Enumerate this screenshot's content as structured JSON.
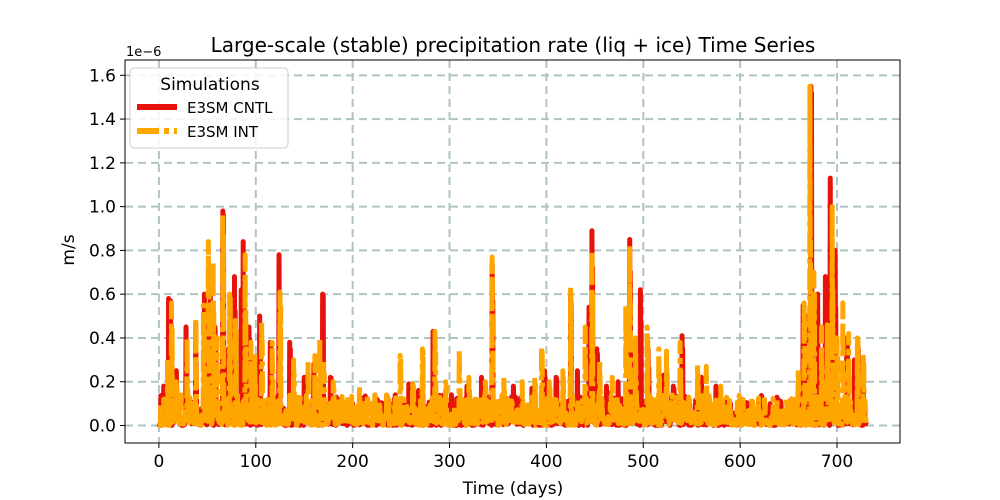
{
  "chart_data": {
    "type": "line",
    "title": "Large-scale (stable) precipitation rate (liq + ice) Time Series",
    "xlabel": "Time (days)",
    "ylabel": "m/s",
    "y_offset_text": "1e−6",
    "xlim": [
      -35,
      765
    ],
    "ylim": [
      -0.08,
      1.67
    ],
    "xticks": [
      0,
      100,
      200,
      300,
      400,
      500,
      600,
      700
    ],
    "xtick_labels": [
      "0",
      "100",
      "200",
      "300",
      "400",
      "500",
      "600",
      "700"
    ],
    "yticks": [
      0.0,
      0.2,
      0.4,
      0.6,
      0.8,
      1.0,
      1.2,
      1.4,
      1.6
    ],
    "ytick_labels": [
      "0.0",
      "0.2",
      "0.4",
      "0.6",
      "0.8",
      "1.0",
      "1.2",
      "1.4",
      "1.6"
    ],
    "grid": true,
    "legend": {
      "title": "Simulations",
      "placement": "top-left"
    },
    "series": [
      {
        "name": "E3SM CNTL",
        "color": "#e8120c",
        "style": "solid",
        "peaks": [
          [
            5,
            0.18
          ],
          [
            10,
            0.58
          ],
          [
            12,
            0.57
          ],
          [
            18,
            0.25
          ],
          [
            28,
            0.45
          ],
          [
            38,
            0.47
          ],
          [
            47,
            0.6
          ],
          [
            53,
            0.65
          ],
          [
            58,
            0.45
          ],
          [
            66,
            0.98
          ],
          [
            72,
            0.35
          ],
          [
            78,
            0.68
          ],
          [
            85,
            0.62
          ],
          [
            87,
            0.84
          ],
          [
            93,
            0.45
          ],
          [
            98,
            0.3
          ],
          [
            104,
            0.5
          ],
          [
            115,
            0.38
          ],
          [
            124,
            0.78
          ],
          [
            135,
            0.38
          ],
          [
            150,
            0.22
          ],
          [
            160,
            0.28
          ],
          [
            167,
            0.35
          ],
          [
            169,
            0.6
          ],
          [
            177,
            0.22
          ],
          [
            200,
            0.1
          ],
          [
            225,
            0.12
          ],
          [
            243,
            0.12
          ],
          [
            254,
            0.11
          ],
          [
            258,
            0.19
          ],
          [
            268,
            0.16
          ],
          [
            283,
            0.43
          ],
          [
            302,
            0.14
          ],
          [
            318,
            0.18
          ],
          [
            333,
            0.22
          ],
          [
            344,
            0.74
          ],
          [
            366,
            0.18
          ],
          [
            385,
            0.17
          ],
          [
            398,
            0.25
          ],
          [
            410,
            0.22
          ],
          [
            425,
            0.6
          ],
          [
            432,
            0.25
          ],
          [
            444,
            0.54
          ],
          [
            447,
            0.89
          ],
          [
            452,
            0.35
          ],
          [
            462,
            0.18
          ],
          [
            474,
            0.2
          ],
          [
            486,
            0.85
          ],
          [
            488,
            0.3
          ],
          [
            497,
            0.62
          ],
          [
            505,
            0.35
          ],
          [
            521,
            0.23
          ],
          [
            531,
            0.18
          ],
          [
            540,
            0.41
          ],
          [
            560,
            0.22
          ],
          [
            575,
            0.18
          ],
          [
            590,
            0.1
          ],
          [
            615,
            0.07
          ],
          [
            631,
            0.1
          ],
          [
            642,
            0.11
          ],
          [
            655,
            0.1
          ],
          [
            660,
            0.18
          ],
          [
            665,
            0.55
          ],
          [
            670,
            0.5
          ],
          [
            673,
            1.55
          ],
          [
            680,
            0.6
          ],
          [
            688,
            0.68
          ],
          [
            693,
            1.13
          ],
          [
            698,
            0.8
          ],
          [
            710,
            0.4
          ],
          [
            718,
            0.3
          ],
          [
            722,
            0.35
          ],
          [
            727,
            0.2
          ]
        ]
      },
      {
        "name": "E3SM INT",
        "color": "#ffa500",
        "style": "dashed",
        "peaks": [
          [
            5,
            0.12
          ],
          [
            9,
            0.3
          ],
          [
            13,
            0.56
          ],
          [
            18,
            0.2
          ],
          [
            29,
            0.4
          ],
          [
            38,
            0.49
          ],
          [
            46,
            0.55
          ],
          [
            51,
            0.84
          ],
          [
            56,
            0.75
          ],
          [
            60,
            0.4
          ],
          [
            66,
            0.97
          ],
          [
            73,
            0.6
          ],
          [
            79,
            0.48
          ],
          [
            89,
            0.78
          ],
          [
            95,
            0.38
          ],
          [
            99,
            0.33
          ],
          [
            106,
            0.47
          ],
          [
            117,
            0.38
          ],
          [
            125,
            0.61
          ],
          [
            139,
            0.3
          ],
          [
            154,
            0.3
          ],
          [
            161,
            0.32
          ],
          [
            166,
            0.4
          ],
          [
            170,
            0.3
          ],
          [
            180,
            0.2
          ],
          [
            207,
            0.18
          ],
          [
            223,
            0.14
          ],
          [
            235,
            0.14
          ],
          [
            249,
            0.32
          ],
          [
            262,
            0.19
          ],
          [
            272,
            0.35
          ],
          [
            285,
            0.43
          ],
          [
            296,
            0.2
          ],
          [
            310,
            0.35
          ],
          [
            320,
            0.22
          ],
          [
            337,
            0.2
          ],
          [
            344,
            0.77
          ],
          [
            356,
            0.22
          ],
          [
            375,
            0.2
          ],
          [
            388,
            0.22
          ],
          [
            395,
            0.36
          ],
          [
            403,
            0.2
          ],
          [
            417,
            0.25
          ],
          [
            425,
            0.63
          ],
          [
            440,
            0.45
          ],
          [
            447,
            0.8
          ],
          [
            455,
            0.3
          ],
          [
            468,
            0.22
          ],
          [
            482,
            0.55
          ],
          [
            486,
            0.82
          ],
          [
            492,
            0.4
          ],
          [
            504,
            0.45
          ],
          [
            516,
            0.35
          ],
          [
            524,
            0.34
          ],
          [
            538,
            0.38
          ],
          [
            556,
            0.28
          ],
          [
            565,
            0.27
          ],
          [
            580,
            0.18
          ],
          [
            603,
            0.12
          ],
          [
            625,
            0.12
          ],
          [
            638,
            0.12
          ],
          [
            652,
            0.12
          ],
          [
            660,
            0.26
          ],
          [
            666,
            0.56
          ],
          [
            672,
            1.55
          ],
          [
            676,
            0.7
          ],
          [
            684,
            0.45
          ],
          [
            690,
            0.46
          ],
          [
            695,
            1.0
          ],
          [
            700,
            0.4
          ],
          [
            706,
            0.56
          ],
          [
            712,
            0.42
          ],
          [
            721,
            0.4
          ],
          [
            727,
            0.33
          ]
        ]
      }
    ]
  }
}
